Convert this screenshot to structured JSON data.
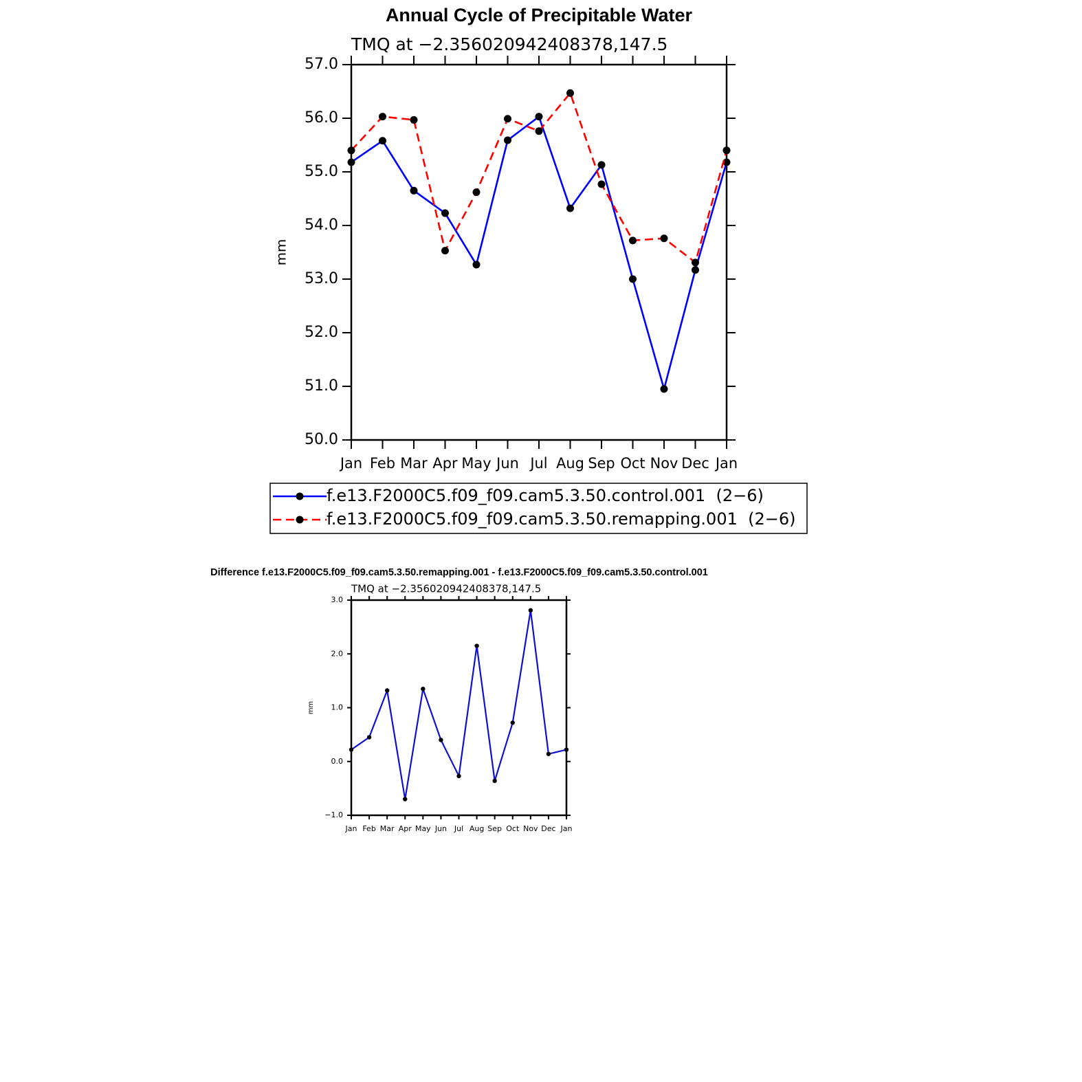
{
  "chart_data": [
    {
      "type": "line",
      "title": "Annual Cycle of Precipitable Water",
      "subtitle": "TMQ  at  −2.356020942408378,147.5",
      "y_label": "mm",
      "categories": [
        "Jan",
        "Feb",
        "Mar",
        "Apr",
        "May",
        "Jun",
        "Jul",
        "Aug",
        "Sep",
        "Oct",
        "Nov",
        "Dec",
        "Jan"
      ],
      "series": [
        {
          "name": "f.e13.F2000C5.f09_f09.cam5.3.50.control.001  (2−6)",
          "color": "#0000ff",
          "line_style": "solid",
          "values": [
            55.18,
            55.58,
            54.65,
            54.23,
            53.27,
            55.59,
            56.03,
            54.32,
            55.13,
            53.0,
            50.95,
            53.17,
            55.18
          ]
        },
        {
          "name": "f.e13.F2000C5.f09_f09.cam5.3.50.remapping.001  (2−6)",
          "color": "#ff0000",
          "line_style": "dashed",
          "values": [
            55.4,
            56.03,
            55.97,
            53.53,
            54.62,
            55.99,
            55.76,
            56.47,
            54.77,
            53.72,
            53.76,
            53.31,
            55.4
          ]
        }
      ],
      "marker_color": "#000000",
      "ylim": [
        50,
        57
      ],
      "yticks": [
        {
          "value": 50,
          "label": "50.0"
        },
        {
          "value": 51,
          "label": "51.0"
        },
        {
          "value": 52,
          "label": "52.0"
        },
        {
          "value": 53,
          "label": "53.0"
        },
        {
          "value": 54,
          "label": "54.0"
        },
        {
          "value": 55,
          "label": "55.0"
        },
        {
          "value": 56,
          "label": "56.0"
        },
        {
          "value": 57,
          "label": "57.0"
        }
      ],
      "grid": false,
      "legend": "bottom"
    },
    {
      "type": "line",
      "title": "Difference f.e13.F2000C5.f09_f09.cam5.3.50.remapping.001 - f.e13.F2000C5.f09_f09.cam5.3.50.control.001",
      "subtitle": "TMQ  at  −2.356020942408378,147.5",
      "y_label": "mm",
      "categories": [
        "Jan",
        "Feb",
        "Mar",
        "Apr",
        "May",
        "Jun",
        "Jul",
        "Aug",
        "Sep",
        "Oct",
        "Nov",
        "Dec",
        "Jan"
      ],
      "values": [
        0.22,
        0.45,
        1.32,
        -0.7,
        1.35,
        0.4,
        -0.27,
        2.15,
        -0.36,
        0.72,
        2.81,
        0.14,
        0.22
      ],
      "color": "#1010d0",
      "marker_color": "#000000",
      "ylim": [
        -1,
        3
      ],
      "yticks": [
        {
          "value": -1,
          "label": "−1.0"
        },
        {
          "value": 0,
          "label": "0.0"
        },
        {
          "value": 1,
          "label": "1.0"
        },
        {
          "value": 2,
          "label": "2.0"
        },
        {
          "value": 3,
          "label": "3.0"
        }
      ],
      "grid": false
    }
  ]
}
